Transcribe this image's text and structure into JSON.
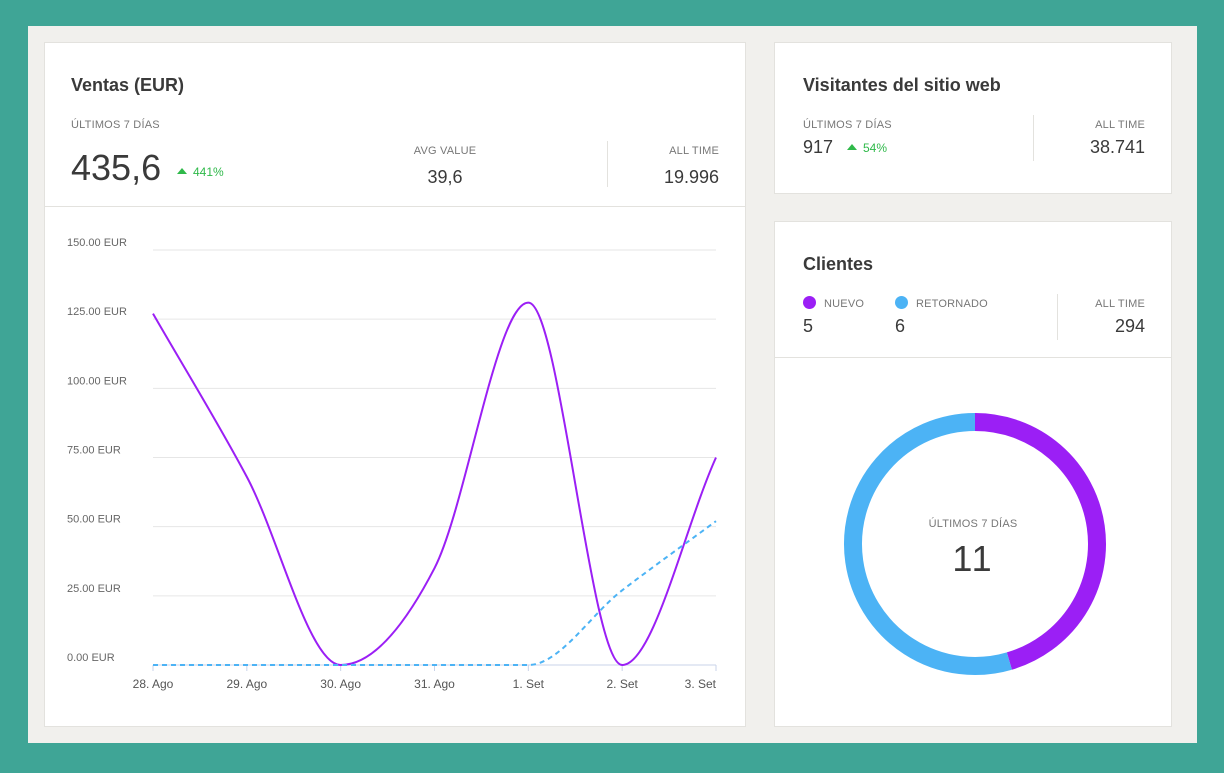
{
  "sales": {
    "title": "Ventas (EUR)",
    "period_label": "ÚLTIMOS 7 DÍAS",
    "value": "435,6",
    "change": "441%",
    "avg_label": "AVG VALUE",
    "avg_value": "39,6",
    "alltime_label": "ALL TIME",
    "alltime_value": "19.996"
  },
  "visitors": {
    "title": "Visitantes del sitio web",
    "period_label": "ÚLTIMOS 7 DÍAS",
    "value": "917",
    "change": "54%",
    "alltime_label": "ALL TIME",
    "alltime_value": "38.741"
  },
  "clients": {
    "title": "Clientes",
    "new_label": "NUEVO",
    "new_value": "5",
    "returning_label": "RETORNADO",
    "returning_value": "6",
    "alltime_label": "ALL TIME",
    "alltime_value": "294",
    "center_label": "ÚLTIMOS 7 DÍAS",
    "center_value": "11"
  },
  "colors": {
    "purple": "#9b1ff5",
    "blue": "#4cb3f5",
    "up": "#2fb94a",
    "background": "#3fa596"
  },
  "chart_data": [
    {
      "type": "line",
      "categories": [
        "28. Ago",
        "29. Ago",
        "30. Ago",
        "31. Ago",
        "1. Set",
        "2. Set",
        "3. Set"
      ],
      "yticks": [
        "0.00 EUR",
        "25.00 EUR",
        "50.00 EUR",
        "75.00 EUR",
        "100.00 EUR",
        "125.00 EUR",
        "150.00 EUR"
      ],
      "ylim": [
        0,
        150
      ],
      "grid": true,
      "series": [
        {
          "values": [
            127,
            68,
            0,
            35,
            131,
            0,
            75
          ],
          "color": "#9b1ff5",
          "style": "solid"
        },
        {
          "values": [
            0,
            0,
            0,
            0,
            0,
            27,
            52
          ],
          "color": "#4cb3f5",
          "style": "dashed"
        }
      ]
    },
    {
      "type": "pie",
      "labels": [
        "NUEVO",
        "RETORNADO"
      ],
      "values": [
        5,
        6
      ],
      "colors": [
        "#9b1ff5",
        "#4cb3f5"
      ]
    }
  ]
}
